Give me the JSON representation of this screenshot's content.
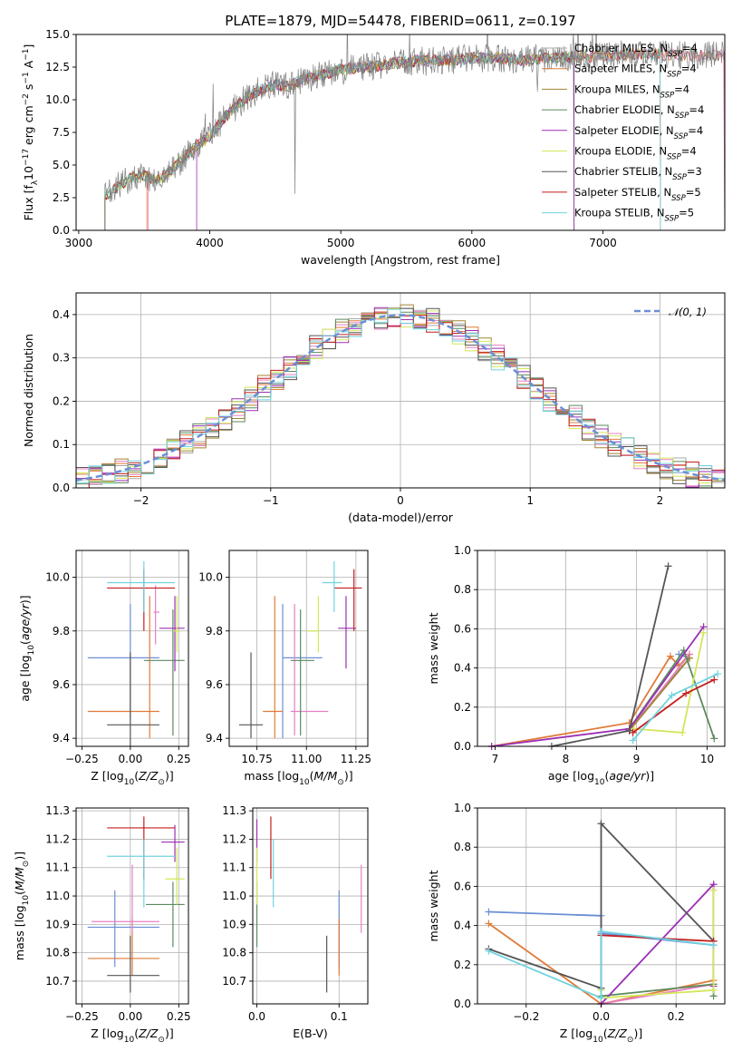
{
  "colors": [
    "#a9a9a9",
    "#e07b39",
    "#e880c4",
    "#a08531",
    "#5b8a5e",
    "#9b30b5",
    "#d4e65a",
    "#555555",
    "#c41e1e",
    "#6fd3e0"
  ],
  "legend_names": [
    "Chabrier MILES, N<sub>SSP</sub>=4",
    "Salpeter MILES, N<sub>SSP</sub>=4",
    "Kroupa MILES, N<sub>SSP</sub>=4",
    "Chabrier ELODIE, N<sub>SSP</sub>=4",
    "Salpeter ELODIE, N<sub>SSP</sub>=4",
    "Kroupa ELODIE, N<sub>SSP</sub>=4",
    "Chabrier STELIB, N<sub>SSP</sub>=3",
    "Salpeter STELIB, N<sub>SSP</sub>=5",
    "Kroupa STELIB, N<sub>SSP</sub>=5"
  ],
  "chart_data": [
    {
      "id": "spectrum",
      "type": "line",
      "title": "PLATE=1879, MJD=54478, FIBERID=0611, z=0.197",
      "xlabel": "wavelength [Angstrom, rest frame]",
      "ylabel": "Flux [f_λ 10^-17 erg cm^-2 s^-1 A^-1]",
      "xlim": [
        2980,
        7930
      ],
      "ylim": [
        0,
        15
      ],
      "xticks": [
        3000,
        4000,
        5000,
        6000,
        7000
      ],
      "yticks": [
        0.0,
        2.5,
        5.0,
        7.5,
        10.0,
        12.5,
        15.0
      ],
      "grid": false,
      "legend_position": "right",
      "data_trace": {
        "name": "data",
        "color": "#808080",
        "x": [
          3200,
          3260,
          3300,
          3400,
          3500,
          3600,
          3700,
          3800,
          3900,
          4000,
          4100,
          4200,
          4300,
          4400,
          4500,
          4600,
          4700,
          4800,
          4900,
          5000,
          5200,
          5400,
          5600,
          5800,
          6000,
          6200,
          6400,
          6600,
          6800,
          7000,
          7200,
          7400,
          7500
        ],
        "y": [
          2.6,
          3.0,
          3.4,
          4.0,
          4.2,
          3.8,
          4.5,
          5.5,
          6.5,
          7.2,
          8.5,
          9.5,
          10.3,
          10.8,
          11.2,
          11.0,
          11.5,
          11.8,
          12.0,
          12.3,
          12.5,
          12.8,
          13.0,
          13.0,
          13.2,
          13.2,
          13.0,
          13.2,
          13.3,
          13.3,
          13.5,
          13.5,
          13.4
        ]
      },
      "model_start": [
        3200,
        3520,
        3530,
        3200,
        3200,
        3900,
        3200,
        3200,
        3200
      ],
      "model_end": [
        7930,
        7930,
        7930,
        6780,
        6780,
        6780,
        7440,
        7440,
        7440
      ]
    },
    {
      "id": "residuals",
      "type": "line",
      "xlabel": "(data-model)/error",
      "ylabel": "Normed distribution",
      "xlim": [
        -2.5,
        2.5
      ],
      "ylim": [
        0,
        0.45
      ],
      "xticks": [
        -2,
        -1,
        0,
        1,
        2
      ],
      "yticks": [
        0.0,
        0.1,
        0.2,
        0.3,
        0.4
      ],
      "grid": true,
      "legend": [
        {
          "name": "𝒩(0, 1)",
          "color": "#6b8fd6",
          "style": "dashed"
        }
      ],
      "legend_position": "top-right",
      "bin_width": 0.1,
      "series_colors_ref": "colors"
    },
    {
      "id": "age_vs_Z",
      "type": "scatter",
      "xlabel": "Z [log10(Z/Z⊙)]",
      "ylabel": "age [log10(age/yr)]",
      "xlim": [
        -0.28,
        0.3
      ],
      "ylim": [
        9.37,
        10.1
      ],
      "xticks": [
        -0.25,
        0.0,
        0.25
      ],
      "yticks": [
        9.4,
        9.6,
        9.8,
        10.0
      ],
      "grid": true,
      "points": [
        {
          "c": "#6b8fd6",
          "x": 0.0,
          "y": 9.7,
          "ex": [
            -0.22,
            0.15
          ],
          "ey": [
            9.47,
            9.9
          ]
        },
        {
          "c": "#e07b39",
          "x": 0.1,
          "y": 9.5,
          "ex": [
            -0.22,
            0.15
          ],
          "ey": [
            9.4,
            9.93
          ]
        },
        {
          "c": "#e880c4",
          "x": 0.13,
          "y": 9.87,
          "ex": [
            0.12,
            0.15
          ],
          "ey": [
            9.75,
            9.97
          ]
        },
        {
          "c": "#5b8a5e",
          "x": 0.22,
          "y": 9.69,
          "ex": [
            0.07,
            0.28
          ],
          "ey": [
            9.41,
            9.88
          ]
        },
        {
          "c": "#9b30b5",
          "x": 0.23,
          "y": 9.81,
          "ex": [
            0.15,
            0.28
          ],
          "ey": [
            9.65,
            9.93
          ]
        },
        {
          "c": "#d4e65a",
          "x": 0.24,
          "y": 9.8,
          "ex": [
            0.22,
            0.26
          ],
          "ey": [
            9.72,
            9.93
          ]
        },
        {
          "c": "#555555",
          "x": 0.0,
          "y": 9.45,
          "ex": [
            -0.12,
            0.15
          ],
          "ey": [
            9.37,
            9.72
          ]
        },
        {
          "c": "#c41e1e",
          "x": 0.07,
          "y": 9.96,
          "ex": [
            -0.12,
            0.23
          ],
          "ey": [
            9.8,
            10.03
          ]
        },
        {
          "c": "#6fd3e0",
          "x": 0.07,
          "y": 9.98,
          "ex": [
            -0.12,
            0.23
          ],
          "ey": [
            9.87,
            10.06
          ]
        }
      ]
    },
    {
      "id": "age_vs_mass",
      "type": "scatter",
      "xlabel": "mass [log10(M/M⊙)]",
      "ylabel": "",
      "xlim": [
        10.61,
        11.31
      ],
      "ylim": [
        9.37,
        10.1
      ],
      "xticks": [
        10.75,
        11.0,
        11.25
      ],
      "yticks": [
        9.4,
        9.6,
        9.8,
        10.0
      ],
      "grid": true,
      "points": [
        {
          "c": "#6b8fd6",
          "x": 10.88,
          "y": 9.7,
          "ex": [
            10.88,
            11.08
          ],
          "ey": [
            9.4,
            9.9
          ]
        },
        {
          "c": "#e07b39",
          "x": 10.84,
          "y": 9.5,
          "ex": [
            10.78,
            10.88
          ],
          "ey": [
            9.4,
            9.93
          ]
        },
        {
          "c": "#e880c4",
          "x": 10.94,
          "y": 9.5,
          "ex": [
            10.92,
            11.11
          ],
          "ey": [
            9.41,
            9.9
          ]
        },
        {
          "c": "#5b8a5e",
          "x": 10.97,
          "y": 9.69,
          "ex": [
            10.92,
            11.04
          ],
          "ey": [
            9.41,
            9.88
          ]
        },
        {
          "c": "#9b30b5",
          "x": 11.2,
          "y": 9.81,
          "ex": [
            11.16,
            11.25
          ],
          "ey": [
            9.66,
            9.93
          ]
        },
        {
          "c": "#d4e65a",
          "x": 11.06,
          "y": 9.8,
          "ex": [
            11.0,
            11.06
          ],
          "ey": [
            9.72,
            9.93
          ]
        },
        {
          "c": "#555555",
          "x": 10.72,
          "y": 9.45,
          "ex": [
            10.66,
            10.78
          ],
          "ey": [
            9.4,
            9.72
          ]
        },
        {
          "c": "#c41e1e",
          "x": 11.24,
          "y": 9.96,
          "ex": [
            11.14,
            11.28
          ],
          "ey": [
            9.8,
            10.03
          ]
        },
        {
          "c": "#6fd3e0",
          "x": 11.14,
          "y": 9.98,
          "ex": [
            11.08,
            11.18
          ],
          "ey": [
            9.87,
            10.06
          ]
        }
      ]
    },
    {
      "id": "weight_vs_age",
      "type": "line",
      "xlabel": "age [log10(age/yr)]",
      "ylabel": "mass weight",
      "xlim": [
        6.75,
        10.25
      ],
      "ylim": [
        0,
        1
      ],
      "xticks": [
        7,
        8,
        9,
        10
      ],
      "yticks": [
        0.0,
        0.2,
        0.4,
        0.6,
        0.8,
        1.0
      ],
      "grid": true,
      "series": [
        {
          "c": "#6b8fd6",
          "x": [
            8.9,
            9.75,
            9.6
          ],
          "y": [
            0.09,
            0.45,
            0.47
          ]
        },
        {
          "c": "#e07b39",
          "x": [
            6.95,
            8.9,
            9.48,
            9.6,
            9.75
          ],
          "y": [
            0.0,
            0.12,
            0.46,
            0.41,
            0.47
          ]
        },
        {
          "c": "#e880c4",
          "x": [
            8.9,
            9.75
          ],
          "y": [
            0.08,
            0.47
          ]
        },
        {
          "c": "#a08531",
          "x": [
            8.9,
            9.75
          ],
          "y": [
            0.08,
            0.45
          ]
        },
        {
          "c": "#5b8a5e",
          "x": [
            8.9,
            9.67,
            10.1
          ],
          "y": [
            0.09,
            0.49,
            0.04
          ]
        },
        {
          "c": "#9b30b5",
          "x": [
            6.95,
            8.9,
            9.95
          ],
          "y": [
            0.0,
            0.09,
            0.61
          ]
        },
        {
          "c": "#d4e65a",
          "x": [
            8.97,
            9.65,
            9.95
          ],
          "y": [
            0.09,
            0.07,
            0.58
          ]
        },
        {
          "c": "#555555",
          "x": [
            7.8,
            8.9,
            9.45
          ],
          "y": [
            0.0,
            0.08,
            0.92
          ]
        },
        {
          "c": "#c41e1e",
          "x": [
            8.95,
            9.7,
            10.1
          ],
          "y": [
            0.07,
            0.27,
            0.34
          ]
        },
        {
          "c": "#6fd3e0",
          "x": [
            8.95,
            9.5,
            10.15
          ],
          "y": [
            0.03,
            0.26,
            0.37
          ]
        }
      ]
    },
    {
      "id": "mass_vs_Z",
      "type": "scatter",
      "xlabel": "Z [log10(Z/Z⊙)]",
      "ylabel": "mass [log10(M/M⊙)]",
      "xlim": [
        -0.28,
        0.3
      ],
      "ylim": [
        10.62,
        11.31
      ],
      "xticks": [
        -0.25,
        0.0,
        0.25
      ],
      "yticks": [
        10.7,
        10.8,
        10.9,
        11.0,
        11.1,
        11.2,
        11.3
      ],
      "grid": true,
      "points": [
        {
          "c": "#6b8fd6",
          "x": -0.08,
          "y": 10.89,
          "ex": [
            -0.22,
            0.15
          ],
          "ey": [
            10.75,
            11.02
          ]
        },
        {
          "c": "#e07b39",
          "x": 0.01,
          "y": 10.78,
          "ex": [
            -0.22,
            0.15
          ],
          "ey": [
            10.72,
            10.92
          ]
        },
        {
          "c": "#e880c4",
          "x": 0.01,
          "y": 10.91,
          "ex": [
            -0.2,
            0.15
          ],
          "ey": [
            10.87,
            11.11
          ]
        },
        {
          "c": "#5b8a5e",
          "x": 0.22,
          "y": 10.97,
          "ex": [
            0.08,
            0.28
          ],
          "ey": [
            10.82,
            11.05
          ]
        },
        {
          "c": "#9b30b5",
          "x": 0.23,
          "y": 11.19,
          "ex": [
            0.16,
            0.28
          ],
          "ey": [
            11.12,
            11.25
          ]
        },
        {
          "c": "#d4e65a",
          "x": 0.24,
          "y": 11.06,
          "ex": [
            0.18,
            0.28
          ],
          "ey": [
            10.97,
            11.17
          ]
        },
        {
          "c": "#555555",
          "x": 0.0,
          "y": 10.72,
          "ex": [
            -0.12,
            0.15
          ],
          "ey": [
            10.66,
            10.86
          ]
        },
        {
          "c": "#c41e1e",
          "x": 0.07,
          "y": 11.24,
          "ex": [
            -0.12,
            0.23
          ],
          "ey": [
            11.06,
            11.28
          ]
        },
        {
          "c": "#6fd3e0",
          "x": 0.07,
          "y": 11.14,
          "ex": [
            -0.12,
            0.23
          ],
          "ey": [
            10.96,
            11.2
          ]
        }
      ]
    },
    {
      "id": "mass_vs_ebv",
      "type": "scatter",
      "xlabel": "E(B-V)",
      "ylabel": "",
      "xlim": [
        -0.005,
        0.135
      ],
      "ylim": [
        10.62,
        11.31
      ],
      "xticks": [
        0.0,
        0.1
      ],
      "yticks": [
        10.7,
        10.8,
        10.9,
        11.0,
        11.1,
        11.2,
        11.3
      ],
      "grid": true,
      "points": [
        {
          "c": "#6b8fd6",
          "x": 0.1,
          "y": 10.89,
          "ex": [
            0.1,
            0.1
          ],
          "ey": [
            10.75,
            11.02
          ]
        },
        {
          "c": "#e07b39",
          "x": 0.1,
          "y": 10.78,
          "ex": [
            0.1,
            0.1
          ],
          "ey": [
            10.72,
            10.92
          ]
        },
        {
          "c": "#e880c4",
          "x": 0.127,
          "y": 10.91,
          "ex": [
            0.127,
            0.127
          ],
          "ey": [
            10.87,
            11.11
          ]
        },
        {
          "c": "#5b8a5e",
          "x": 0.0,
          "y": 10.97,
          "ex": [
            0.0,
            0.0
          ],
          "ey": [
            10.82,
            11.05
          ]
        },
        {
          "c": "#9b30b5",
          "x": 0.0,
          "y": 11.19,
          "ex": [
            0.0,
            0.0
          ],
          "ey": [
            11.12,
            11.27
          ]
        },
        {
          "c": "#d4e65a",
          "x": 0.0,
          "y": 11.06,
          "ex": [
            0.0,
            0.0
          ],
          "ey": [
            10.97,
            11.17
          ]
        },
        {
          "c": "#555555",
          "x": 0.085,
          "y": 10.72,
          "ex": [
            0.085,
            0.085
          ],
          "ey": [
            10.66,
            10.86
          ]
        },
        {
          "c": "#c41e1e",
          "x": 0.017,
          "y": 11.24,
          "ex": [
            0.017,
            0.017
          ],
          "ey": [
            11.06,
            11.28
          ]
        },
        {
          "c": "#6fd3e0",
          "x": 0.02,
          "y": 11.14,
          "ex": [
            0.02,
            0.02
          ],
          "ey": [
            10.96,
            11.2
          ]
        }
      ]
    },
    {
      "id": "weight_vs_Z",
      "type": "line",
      "xlabel": "Z [log10(Z/Z⊙)]",
      "ylabel": "mass weight",
      "xlim": [
        -0.33,
        0.33
      ],
      "ylim": [
        0,
        1
      ],
      "xticks": [
        -0.2,
        0.0,
        0.2
      ],
      "yticks": [
        0.0,
        0.2,
        0.4,
        0.6,
        0.8,
        1.0
      ],
      "grid": true,
      "series": [
        {
          "c": "#6b8fd6",
          "x": [
            -0.3,
            0.0,
            0.0,
            0.3
          ],
          "y": [
            0.47,
            0.45,
            0.36,
            0.3
          ]
        },
        {
          "c": "#e07b39",
          "x": [
            -0.3,
            0.0,
            0.3
          ],
          "y": [
            0.41,
            0.0,
            0.12
          ]
        },
        {
          "c": "#e880c4",
          "x": [
            0.0,
            0.3
          ],
          "y": [
            0.0,
            0.1
          ]
        },
        {
          "c": "#5b8a5e",
          "x": [
            0.0,
            0.0,
            0.3,
            0.3
          ],
          "y": [
            0.37,
            0.04,
            0.1,
            0.04
          ]
        },
        {
          "c": "#9b30b5",
          "x": [
            0.0,
            0.3,
            0.3
          ],
          "y": [
            0.0,
            0.61,
            0.09
          ]
        },
        {
          "c": "#d4e65a",
          "x": [
            0.0,
            0.0,
            0.3,
            0.3
          ],
          "y": [
            0.07,
            0.03,
            0.07,
            0.58
          ]
        },
        {
          "c": "#555555",
          "x": [
            -0.3,
            0.0,
            0.0,
            0.3
          ],
          "y": [
            0.28,
            0.08,
            0.92,
            0.32
          ]
        },
        {
          "c": "#c41e1e",
          "x": [
            0.0,
            0.3
          ],
          "y": [
            0.35,
            0.32
          ]
        },
        {
          "c": "#6fd3e0",
          "x": [
            -0.3,
            0.0,
            0.0,
            0.3
          ],
          "y": [
            0.27,
            0.03,
            0.37,
            0.3
          ]
        }
      ]
    }
  ]
}
